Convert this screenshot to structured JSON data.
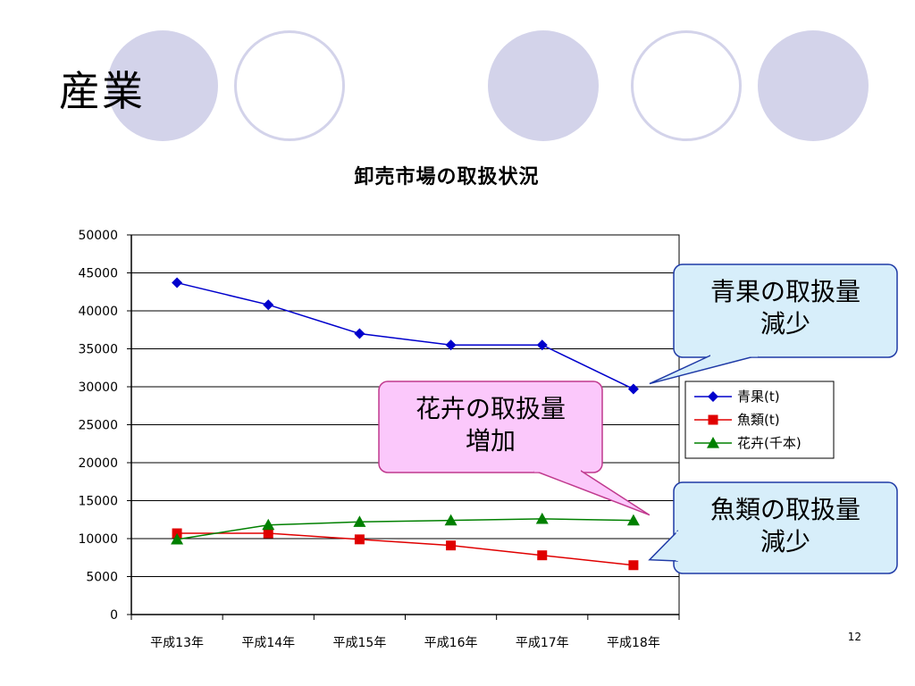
{
  "slide": {
    "title": "産業",
    "page_number": "12"
  },
  "chart_data": {
    "type": "line",
    "title": "卸売市場の取扱状況",
    "categories": [
      "平成13年",
      "平成14年",
      "平成15年",
      "平成16年",
      "平成17年",
      "平成18年"
    ],
    "ylim": [
      0,
      50000
    ],
    "yticks": [
      0,
      5000,
      10000,
      15000,
      20000,
      25000,
      30000,
      35000,
      40000,
      45000,
      50000
    ],
    "grid": true,
    "legend_position": "right",
    "series": [
      {
        "name": "青果(t)",
        "color": "#0000cc",
        "marker": "diamond",
        "values": [
          43700,
          40800,
          37000,
          35500,
          35500,
          29700
        ]
      },
      {
        "name": "魚類(t)",
        "color": "#e00000",
        "marker": "square",
        "values": [
          10700,
          10700,
          9900,
          9100,
          7800,
          6500
        ]
      },
      {
        "name": "花卉(千本)",
        "color": "#008000",
        "marker": "triangle",
        "values": [
          9900,
          11800,
          12200,
          12400,
          12600,
          12400
        ]
      }
    ],
    "annotations": [
      {
        "text": [
          "青果の取扱量",
          "減少"
        ],
        "style": "blue",
        "series": 0,
        "point": 5
      },
      {
        "text": [
          "花卉の取扱量",
          "増加"
        ],
        "style": "pink",
        "series": 2,
        "point": 5
      },
      {
        "text": [
          "魚類の取扱量",
          "減少"
        ],
        "style": "blue",
        "series": 1,
        "point": 5
      }
    ]
  }
}
